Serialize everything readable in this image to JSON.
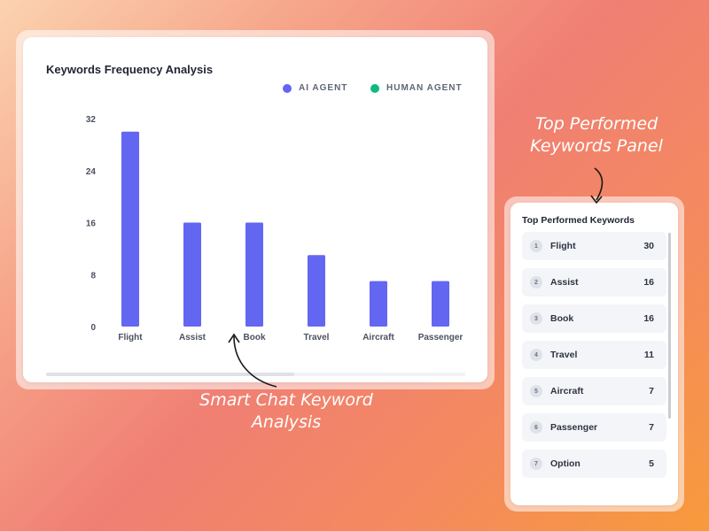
{
  "colors": {
    "ai_agent": "#6366f1",
    "human_agent": "#10b981",
    "axis_text": "#4b5160",
    "annotation": "#ffffff"
  },
  "chart_data": {
    "type": "bar",
    "title": "Keywords Frequency Analysis",
    "categories": [
      "Flight",
      "Assist",
      "Book",
      "Travel",
      "Aircraft",
      "Passenger"
    ],
    "series": [
      {
        "name": "AI AGENT",
        "color": "#6366f1",
        "values": [
          30,
          16,
          16,
          11,
          7,
          7
        ]
      },
      {
        "name": "HUMAN AGENT",
        "color": "#10b981",
        "values": [
          0,
          0,
          0,
          0,
          0,
          0
        ]
      }
    ],
    "yticks": [
      0,
      8,
      16,
      24,
      32
    ],
    "ylim": [
      0,
      32
    ],
    "legend_position": "top-right",
    "grid": false
  },
  "panel": {
    "title": "Top Performed Keywords",
    "items": [
      {
        "rank": "1",
        "label": "Flight",
        "count": "30"
      },
      {
        "rank": "2",
        "label": "Assist",
        "count": "16"
      },
      {
        "rank": "3",
        "label": "Book",
        "count": "16"
      },
      {
        "rank": "4",
        "label": "Travel",
        "count": "11"
      },
      {
        "rank": "5",
        "label": "Aircraft",
        "count": "7"
      },
      {
        "rank": "6",
        "label": "Passenger",
        "count": "7"
      },
      {
        "rank": "7",
        "label": "Option",
        "count": "5"
      }
    ]
  },
  "annotations": {
    "panel": "Top Performed Keywords Panel",
    "chart": "Smart Chat Keyword Analysis"
  }
}
